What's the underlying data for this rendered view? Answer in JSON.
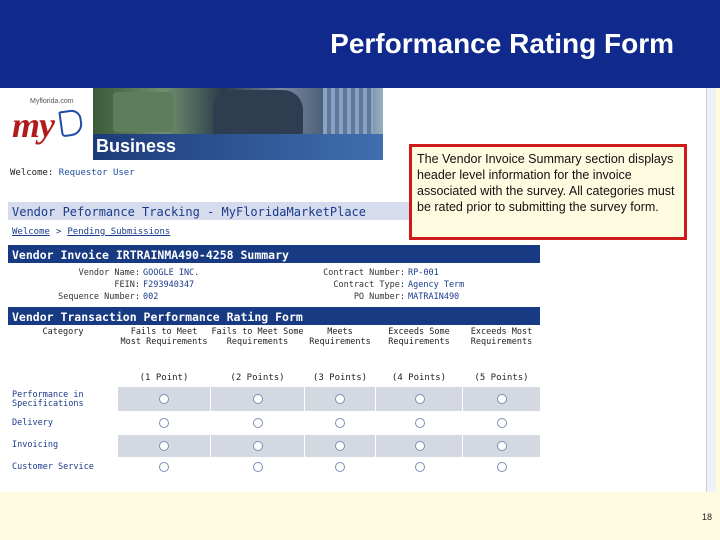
{
  "slide": {
    "title": "Performance Rating Form",
    "page_number": "18",
    "callout": "The Vendor Invoice Summary section displays header level information for the invoice associated with the survey. All categories must be rated prior to submitting the survey form."
  },
  "header": {
    "site_url": "Myflorida.com",
    "logo_text": "my",
    "business_label": "Business"
  },
  "welcome": {
    "label": "Welcome:",
    "user": "Requestor User"
  },
  "page_heading": "Vendor Peformance Tracking - MyFloridaMarketPlace",
  "breadcrumbs": {
    "home": "Welcome",
    "separator": ">",
    "current": "Pending Submissions"
  },
  "invoice": {
    "heading": "Vendor Invoice IRTRAINMA490-4258 Summary",
    "fields": {
      "vendor_name_label": "Vendor Name:",
      "vendor_name": "GOOGLE INC.",
      "fein_label": "FEIN:",
      "fein": "F293940347",
      "sequence_label": "Sequence Number:",
      "sequence": "002",
      "contract_number_label": "Contract Number:",
      "contract_number": "RP-001",
      "contract_type_label": "Contract Type:",
      "contract_type": "Agency Term",
      "po_number_label": "PO Number:",
      "po_number": "MATRAIN490"
    }
  },
  "rating": {
    "heading": "Vendor Transaction Performance Rating Form",
    "category_label": "Category",
    "columns": [
      {
        "label": "Fails to Meet Most Requirements",
        "points": "(1 Point)"
      },
      {
        "label": "Fails to Meet Some Requirements",
        "points": "(2 Points)"
      },
      {
        "label": "Meets Requirements",
        "points": "(3 Points)"
      },
      {
        "label": "Exceeds Some Requirements",
        "points": "(4 Points)"
      },
      {
        "label": "Exceeds Most Requirements",
        "points": "(5 Points)"
      }
    ],
    "rows": [
      {
        "category": "Performance in Specifications"
      },
      {
        "category": "Delivery"
      },
      {
        "category": "Invoicing"
      },
      {
        "category": "Customer Service"
      }
    ]
  }
}
